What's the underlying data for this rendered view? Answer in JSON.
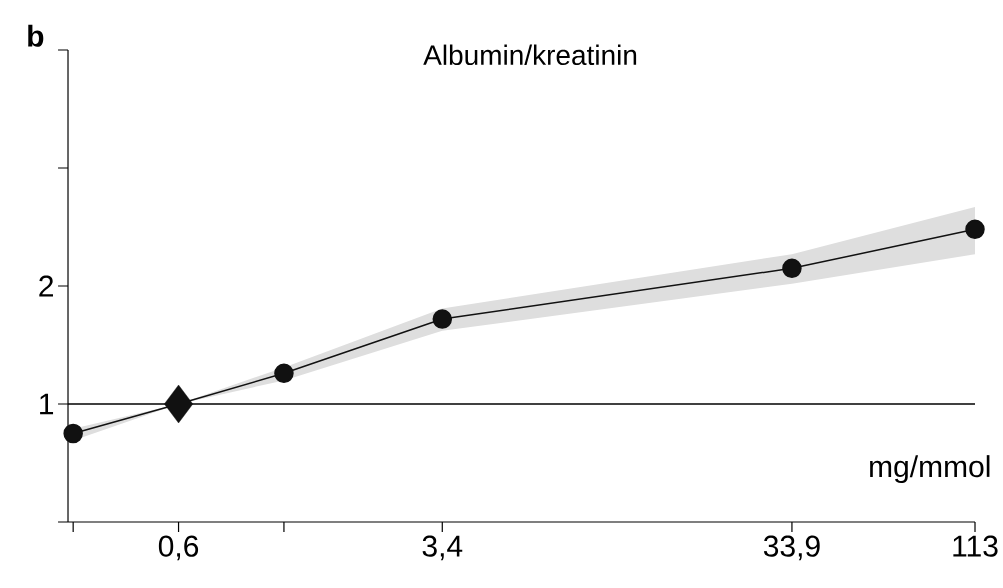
{
  "chart_data": {
    "type": "line",
    "title": "Albumin/kreatinin",
    "xlabel": "mg/mmol",
    "annotations": [
      "**b**"
    ],
    "log": "x",
    "xlim": [
      0.29,
      113
    ],
    "ylim": [
      0,
      4
    ],
    "xticks": [
      {
        "value": 0.3,
        "label": null
      },
      {
        "value": 0.6,
        "label": "0,6"
      },
      {
        "value": 1.2,
        "label": null
      },
      {
        "value": 3.4,
        "label": "3,4"
      },
      {
        "value": 33.9,
        "label": "33,9"
      },
      {
        "value": 113,
        "label": "113"
      }
    ],
    "yticks": [
      {
        "value": 0,
        "label": null
      },
      1,
      2,
      {
        "value": 3,
        "label": null
      },
      {
        "value": 4,
        "label": null
      }
    ],
    "grid": false,
    "ref_lines": [
      {
        "axis": "y",
        "value": 1,
        "color": "#000000"
      }
    ],
    "series": [
      {
        "color": "#111111",
        "marker": "circle",
        "x": [
          0.3,
          0.6,
          1.2,
          3.4,
          33.9,
          113
        ],
        "values": [
          0.75,
          1.0,
          1.26,
          1.72,
          2.15,
          2.48
        ],
        "lower": [
          0.69,
          1.0,
          1.2,
          1.62,
          2.02,
          2.27
        ],
        "upper": [
          0.79,
          1.0,
          1.31,
          1.81,
          2.27,
          2.67
        ]
      },
      {
        "type": "scatter",
        "color": "#111111",
        "marker": "diamond",
        "x": [
          0.6
        ],
        "values": [
          1.0
        ]
      }
    ]
  }
}
